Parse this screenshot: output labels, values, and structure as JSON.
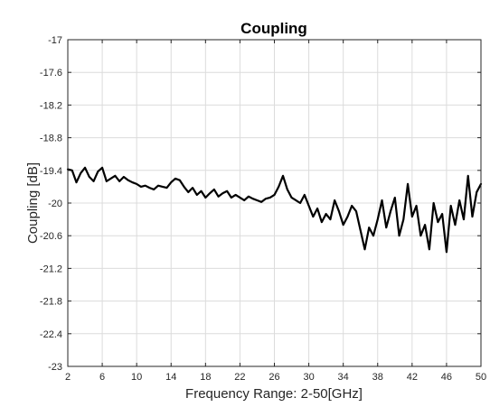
{
  "chart_data": {
    "type": "line",
    "title": "Coupling",
    "xlabel": "Frequency Range: 2-50[GHz]",
    "ylabel": "Coupling [dB]",
    "xlim": [
      2,
      50
    ],
    "ylim": [
      -23,
      -17
    ],
    "xticks": [
      "2",
      "6",
      "10",
      "14",
      "18",
      "22",
      "26",
      "30",
      "34",
      "38",
      "42",
      "46",
      "50"
    ],
    "yticks": [
      "-17",
      "-17.6",
      "-18.2",
      "-18.8",
      "-19.4",
      "-20",
      "-20.6",
      "-21.2",
      "-21.8",
      "-22.4",
      "-23"
    ],
    "grid": true,
    "series": [
      {
        "color": "#000000",
        "x": [
          2,
          2.5,
          3.0,
          3.5,
          4.0,
          4.5,
          5.0,
          5.5,
          6.0,
          6.5,
          7.0,
          7.5,
          8.0,
          8.5,
          9.0,
          9.5,
          10.0,
          10.5,
          11.0,
          11.5,
          12.0,
          12.5,
          13.0,
          13.5,
          14.0,
          14.5,
          15.0,
          15.5,
          16.0,
          16.5,
          17.0,
          17.5,
          18.0,
          18.5,
          19.0,
          19.5,
          20.0,
          20.5,
          21.0,
          21.5,
          22.0,
          22.5,
          23.0,
          23.5,
          24.0,
          24.5,
          25.0,
          25.5,
          26.0,
          26.5,
          27.0,
          27.5,
          28.0,
          28.5,
          29.0,
          29.5,
          30.0,
          30.5,
          31.0,
          31.5,
          32.0,
          32.5,
          33.0,
          33.5,
          34.0,
          34.5,
          35.0,
          35.5,
          36.0,
          36.5,
          37.0,
          37.5,
          38.0,
          38.5,
          39.0,
          39.5,
          40.0,
          40.5,
          41.0,
          41.5,
          42.0,
          42.5,
          43.0,
          43.5,
          44.0,
          44.5,
          45.0,
          45.5,
          46.0,
          46.5,
          47.0,
          47.5,
          48.0,
          48.5,
          49.0,
          49.5,
          50.0
        ],
        "y": [
          -19.38,
          -19.4,
          -19.62,
          -19.45,
          -19.35,
          -19.52,
          -19.6,
          -19.42,
          -19.35,
          -19.6,
          -19.55,
          -19.5,
          -19.6,
          -19.52,
          -19.58,
          -19.62,
          -19.65,
          -19.7,
          -19.68,
          -19.72,
          -19.75,
          -19.68,
          -19.7,
          -19.72,
          -19.62,
          -19.55,
          -19.58,
          -19.7,
          -19.8,
          -19.72,
          -19.85,
          -19.78,
          -19.9,
          -19.82,
          -19.75,
          -19.88,
          -19.82,
          -19.78,
          -19.9,
          -19.85,
          -19.9,
          -19.95,
          -19.88,
          -19.92,
          -19.95,
          -19.98,
          -19.92,
          -19.9,
          -19.85,
          -19.7,
          -19.5,
          -19.75,
          -19.9,
          -19.95,
          -20.0,
          -19.85,
          -20.05,
          -20.25,
          -20.1,
          -20.35,
          -20.2,
          -20.3,
          -19.95,
          -20.15,
          -20.4,
          -20.25,
          -20.05,
          -20.15,
          -20.5,
          -20.85,
          -20.45,
          -20.6,
          -20.3,
          -19.95,
          -20.45,
          -20.15,
          -19.9,
          -20.6,
          -20.3,
          -19.65,
          -20.25,
          -20.05,
          -20.6,
          -20.4,
          -20.85,
          -20.0,
          -20.35,
          -20.2,
          -20.9,
          -20.05,
          -20.4,
          -19.95,
          -20.3,
          -19.5,
          -20.25,
          -19.8,
          -19.65
        ]
      }
    ]
  }
}
